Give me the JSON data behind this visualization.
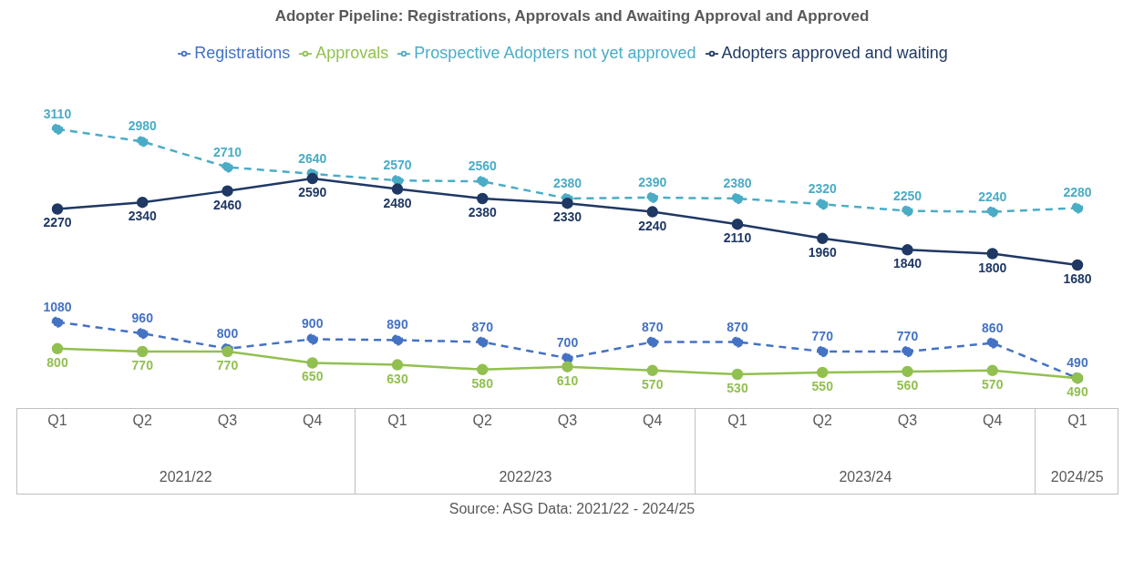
{
  "chart_data": {
    "type": "line",
    "title": "Adopter Pipeline: Registrations, Approvals and Awaiting Approval and Approved",
    "categories": [
      "Q1",
      "Q2",
      "Q3",
      "Q4",
      "Q1",
      "Q2",
      "Q3",
      "Q4",
      "Q1",
      "Q2",
      "Q3",
      "Q4",
      "Q1"
    ],
    "series": [
      {
        "name": "Registrations",
        "color": "#4472c4",
        "line_style": "dashed",
        "values": [
          1080,
          960,
          800,
          900,
          890,
          870,
          700,
          870,
          870,
          770,
          770,
          860,
          490
        ]
      },
      {
        "name": "Approvals",
        "color": "#92c050",
        "line_style": "solid",
        "values": [
          800,
          770,
          770,
          650,
          630,
          580,
          610,
          570,
          530,
          550,
          560,
          570,
          490
        ]
      },
      {
        "name": "Prospective Adopters not yet approved",
        "color": "#4bacc6",
        "line_style": "dashed",
        "values": [
          3110,
          2980,
          2710,
          2640,
          2570,
          2560,
          2380,
          2390,
          2380,
          2320,
          2250,
          2240,
          2280
        ]
      },
      {
        "name": "Adopters approved and waiting",
        "color": "#1f3864",
        "line_style": "solid",
        "values": [
          2270,
          2340,
          2460,
          2590,
          2480,
          2380,
          2330,
          2240,
          2110,
          1960,
          1840,
          1800,
          1680
        ]
      }
    ],
    "data_labels": true,
    "marker": "circle",
    "legend": "top",
    "grid": false,
    "annotations": [
      "2021/22",
      "2022/23",
      "2023/24",
      "2024/25",
      "Source: ASG Data: 2021/22 - 2024/25"
    ]
  }
}
